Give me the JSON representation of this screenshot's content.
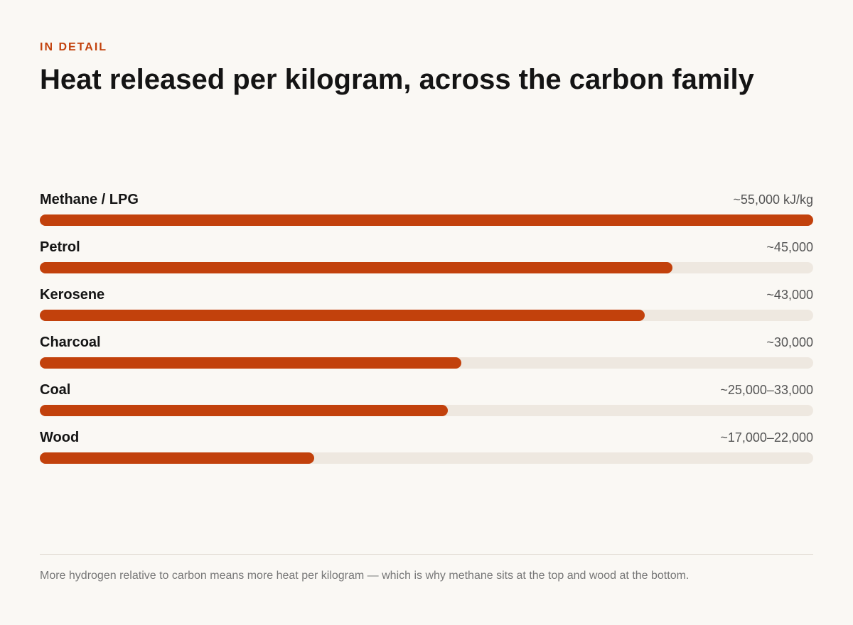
{
  "header": {
    "eyebrow": "IN DETAIL",
    "title": "Heat released per kilogram, across the carbon family"
  },
  "chart_data": {
    "type": "bar",
    "orientation": "horizontal",
    "title": "Heat released per kilogram, across the carbon family",
    "unit": "kJ/kg",
    "xlim": [
      0,
      55000
    ],
    "categories": [
      "Methane / LPG",
      "Petrol",
      "Kerosene",
      "Charcoal",
      "Coal",
      "Wood"
    ],
    "values": [
      55000,
      45000,
      43000,
      30000,
      29000,
      19500
    ],
    "value_labels": [
      "~55,000 kJ/kg",
      "~45,000",
      "~43,000",
      "~30,000",
      "~25,000–33,000",
      "~17,000–22,000"
    ],
    "colors": {
      "bar": "#c2410c",
      "track": "#eee8e0"
    }
  },
  "footer": {
    "note": "More hydrogen relative to carbon means more heat per kilogram — which is why methane sits at the top and wood at the bottom."
  }
}
